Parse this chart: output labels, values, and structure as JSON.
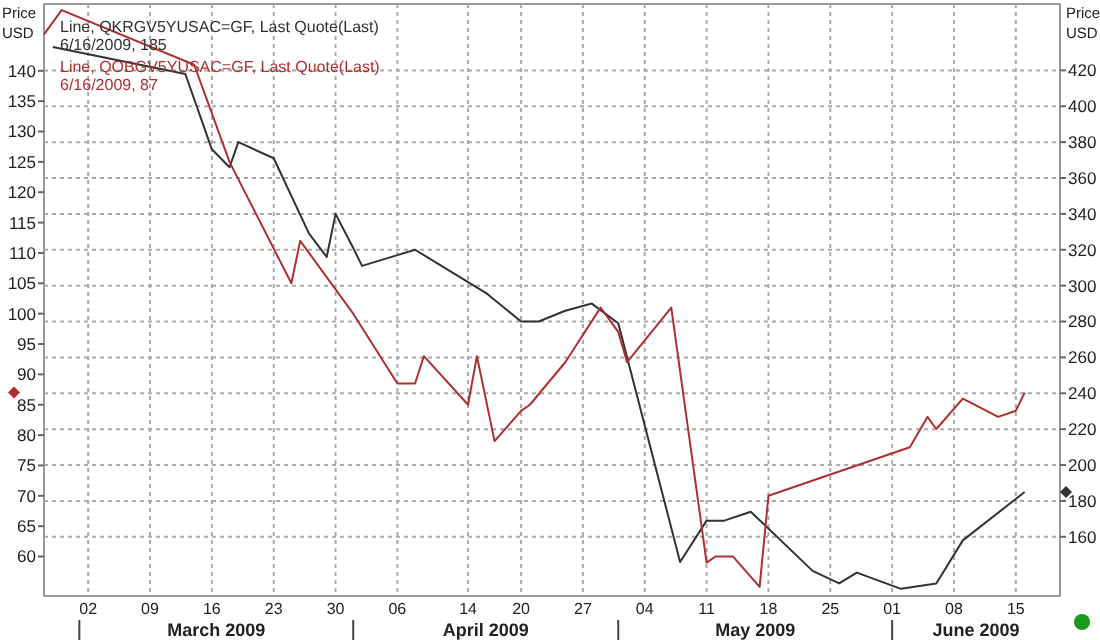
{
  "chart_data": {
    "type": "line",
    "ylabel": "Price USD",
    "y2label": "Price USD",
    "xlim": [
      "2009-02-25",
      "2009-06-20"
    ],
    "xticks": [
      {
        "value": "2009-03-02",
        "label": "02"
      },
      {
        "value": "2009-03-09",
        "label": "09"
      },
      {
        "value": "2009-03-16",
        "label": "16"
      },
      {
        "value": "2009-03-23",
        "label": "23"
      },
      {
        "value": "2009-03-30",
        "label": "30"
      },
      {
        "value": "2009-04-06",
        "label": "06"
      },
      {
        "value": "2009-04-14",
        "label": "14"
      },
      {
        "value": "2009-04-20",
        "label": "20"
      },
      {
        "value": "2009-04-27",
        "label": "27"
      },
      {
        "value": "2009-05-04",
        "label": "04"
      },
      {
        "value": "2009-05-11",
        "label": "11"
      },
      {
        "value": "2009-05-18",
        "label": "18"
      },
      {
        "value": "2009-05-25",
        "label": "25"
      },
      {
        "value": "2009-06-01",
        "label": "01"
      },
      {
        "value": "2009-06-08",
        "label": "08"
      },
      {
        "value": "2009-06-15",
        "label": "15"
      }
    ],
    "ylim": [
      53.5,
      151
    ],
    "yticks": [
      60,
      65,
      70,
      75,
      80,
      85,
      90,
      95,
      100,
      105,
      110,
      115,
      120,
      125,
      130,
      135,
      140
    ],
    "y2lim": [
      127,
      457
    ],
    "y2ticks": [
      160,
      180,
      200,
      220,
      240,
      260,
      280,
      300,
      320,
      340,
      360,
      380,
      400,
      420
    ],
    "grid": true,
    "legend": "top left",
    "marker": "none",
    "line_style": "solid",
    "series": [
      {
        "name": "Line, QKRGV5YUSAC=GF, Last Quote(Last)",
        "color": "#333333",
        "axis": "y2",
        "x": [
          "2009-02-26",
          "2009-03-13",
          "2009-03-16",
          "2009-03-18",
          "2009-03-19",
          "2009-03-23",
          "2009-03-27",
          "2009-03-29",
          "2009-03-30",
          "2009-04-01",
          "2009-04-02",
          "2009-04-06",
          "2009-04-08",
          "2009-04-16",
          "2009-04-20",
          "2009-04-22",
          "2009-04-25",
          "2009-04-28",
          "2009-05-01",
          "2009-05-08",
          "2009-05-11",
          "2009-05-13",
          "2009-05-16",
          "2009-05-23",
          "2009-05-26",
          "2009-05-28",
          "2009-06-02",
          "2009-06-06",
          "2009-06-09",
          "2009-06-16"
        ],
        "values": [
          433,
          418,
          376,
          366,
          380,
          371,
          329,
          316,
          340,
          321,
          311,
          317,
          320,
          296,
          280,
          280,
          286,
          290,
          279,
          146,
          169,
          169,
          174,
          141,
          134,
          140,
          131,
          134,
          158,
          185
        ]
      },
      {
        "name": "Line, QOBGV5YUSAC=GF, Last Quote(Last)",
        "color": "#b03030",
        "axis": "y",
        "x": [
          "2009-02-25",
          "2009-02-27",
          "2009-03-14",
          "2009-03-18",
          "2009-03-25",
          "2009-03-26",
          "2009-04-01",
          "2009-04-06",
          "2009-04-08",
          "2009-04-09",
          "2009-04-14",
          "2009-04-15",
          "2009-04-17",
          "2009-04-20",
          "2009-04-21",
          "2009-04-25",
          "2009-04-29",
          "2009-05-01",
          "2009-05-02",
          "2009-05-07",
          "2009-05-11",
          "2009-05-12",
          "2009-05-14",
          "2009-05-17",
          "2009-05-18",
          "2009-06-03",
          "2009-06-05",
          "2009-06-06",
          "2009-06-09",
          "2009-06-13",
          "2009-06-15",
          "2009-06-16"
        ],
        "values": [
          146,
          150,
          141,
          125,
          105,
          112,
          100,
          88.5,
          88.5,
          93,
          85,
          93,
          79,
          84,
          85,
          92,
          101,
          97,
          92,
          101,
          59,
          60,
          60,
          55,
          70,
          78,
          83,
          81,
          86,
          83,
          84,
          87
        ]
      }
    ],
    "annotations": [
      "6/16/2009, 185",
      "6/16/2009, 87",
      "March 2009",
      "April 2009",
      "May 2009",
      "June 2009"
    ]
  }
}
